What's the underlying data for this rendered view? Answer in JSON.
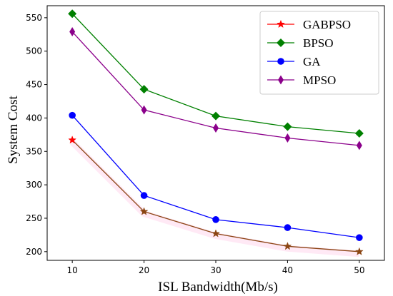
{
  "chart_data": {
    "type": "line",
    "title": "",
    "xlabel": "ISL Bandwidth(Mb/s)",
    "ylabel": "System Cost",
    "x": [
      10,
      20,
      30,
      40,
      50
    ],
    "xticks": [
      "10",
      "20",
      "30",
      "40",
      "50"
    ],
    "yticks": [
      "200",
      "250",
      "300",
      "350",
      "400",
      "450",
      "500",
      "550"
    ],
    "xlim": [
      6.5,
      53.5
    ],
    "ylim": [
      187,
      568
    ],
    "grid": false,
    "legend": "top-right",
    "series": [
      {
        "name": "GABPSO",
        "values": [
          367,
          260,
          227,
          208,
          200
        ],
        "color": "#ff0000",
        "line_color": "#8b4513",
        "marker": "star"
      },
      {
        "name": "BPSO",
        "values": [
          556,
          443,
          403,
          387,
          377
        ],
        "color": "#008000",
        "line_color": "#008000",
        "marker": "diamond"
      },
      {
        "name": "GA",
        "values": [
          404,
          284,
          248,
          236,
          221
        ],
        "color": "#0000ff",
        "line_color": "#0000ff",
        "marker": "circle"
      },
      {
        "name": "MPSO",
        "values": [
          529,
          412,
          385,
          370,
          359
        ],
        "color": "#8b008b",
        "line_color": "#8b008b",
        "marker": "thin-diamond"
      }
    ]
  }
}
